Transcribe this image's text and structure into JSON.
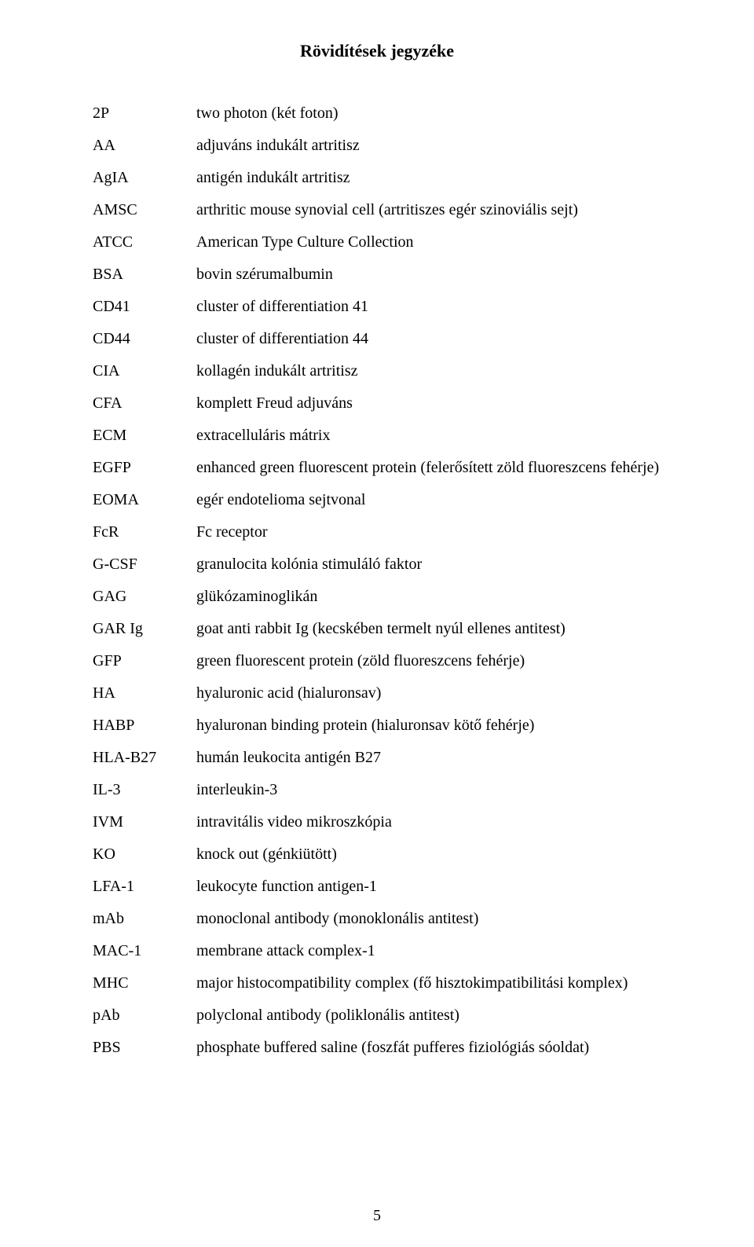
{
  "title": "Rövidítések jegyzéke",
  "page_number": "5",
  "rows": [
    {
      "abbr": "2P",
      "def": "two photon (két foton)"
    },
    {
      "abbr": "AA",
      "def": "adjuváns indukált artritisz"
    },
    {
      "abbr": "AgIA",
      "def": "antigén indukált artritisz"
    },
    {
      "abbr": "AMSC",
      "def": "arthritic mouse synovial cell (artritiszes egér szinoviális sejt)"
    },
    {
      "abbr": "ATCC",
      "def": "American Type Culture Collection"
    },
    {
      "abbr": "BSA",
      "def": "bovin szérumalbumin"
    },
    {
      "abbr": "CD41",
      "def": "cluster of differentiation 41"
    },
    {
      "abbr": "CD44",
      "def": "cluster of differentiation 44"
    },
    {
      "abbr": "CIA",
      "def": "kollagén indukált artritisz"
    },
    {
      "abbr": "CFA",
      "def": "komplett Freud adjuváns"
    },
    {
      "abbr": "ECM",
      "def": "extracelluláris mátrix"
    },
    {
      "abbr": "EGFP",
      "def": "enhanced green fluorescent protein (felerősített zöld fluoreszcens fehérje)"
    },
    {
      "abbr": "EOMA",
      "def": "egér endotelioma sejtvonal"
    },
    {
      "abbr": "FcR",
      "def": "Fc receptor"
    },
    {
      "abbr": "G-CSF",
      "def": "granulocita kolónia stimuláló faktor"
    },
    {
      "abbr": "GAG",
      "def": "glükózaminoglikán"
    },
    {
      "abbr": "GAR Ig",
      "def": "goat anti rabbit Ig (kecskében termelt nyúl ellenes antitest)"
    },
    {
      "abbr": "GFP",
      "def": "green fluorescent protein (zöld fluoreszcens fehérje)"
    },
    {
      "abbr": "HA",
      "def": "hyaluronic acid (hialuronsav)"
    },
    {
      "abbr": "HABP",
      "def": "hyaluronan binding protein (hialuronsav kötő fehérje)"
    },
    {
      "abbr": "HLA-B27",
      "def": "humán leukocita antigén B27"
    },
    {
      "abbr": "IL-3",
      "def": "interleukin-3"
    },
    {
      "abbr": "IVM",
      "def": "intravitális video mikroszkópia"
    },
    {
      "abbr": "KO",
      "def": "knock out (génkiütött)"
    },
    {
      "abbr": "LFA-1",
      "def": "leukocyte function antigen-1"
    },
    {
      "abbr": "mAb",
      "def": "monoclonal antibody (monoklonális antitest)"
    },
    {
      "abbr": "MAC-1",
      "def": "membrane attack complex-1"
    },
    {
      "abbr": "MHC",
      "def": "major histocompatibility complex (fő hisztokimpatibilitási komplex)"
    },
    {
      "abbr": "pAb",
      "def": "polyclonal antibody (poliklonális antitest)"
    },
    {
      "abbr": "PBS",
      "def": "phosphate buffered saline (foszfát pufferes fiziológiás sóoldat)"
    }
  ]
}
